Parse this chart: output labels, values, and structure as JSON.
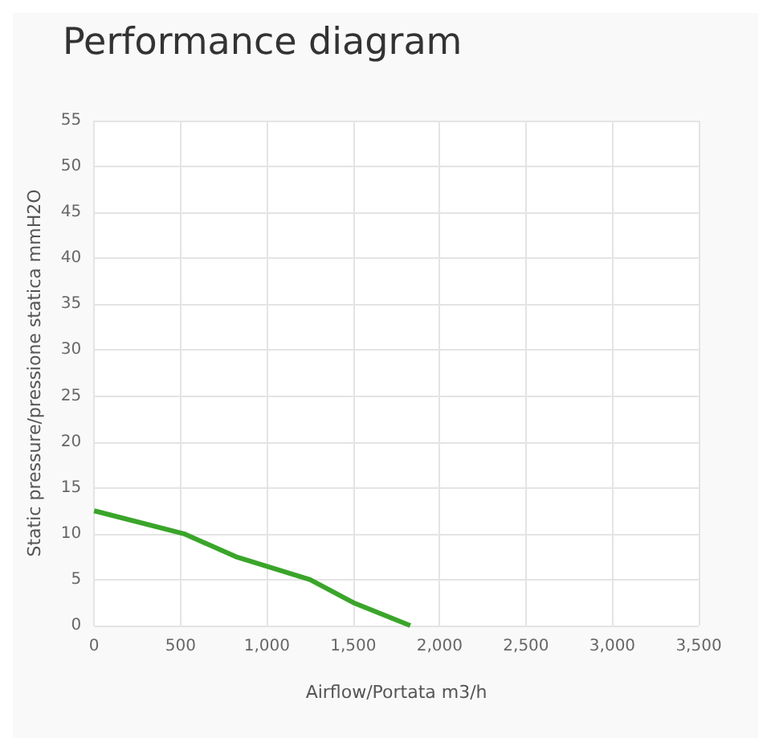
{
  "chart_data": {
    "type": "line",
    "title": "Performance diagram",
    "xlabel": "Airflow/Portata m3/h",
    "ylabel": "Static pressure/pressione statica mmH2O",
    "x": [
      0,
      520,
      820,
      1250,
      1500,
      1830
    ],
    "series": [
      {
        "color": "#3aa52a",
        "values": [
          12.5,
          10,
          7.5,
          5,
          2.5,
          0
        ]
      }
    ],
    "xlim": [
      0,
      3500
    ],
    "xticks": [
      {
        "value": 0,
        "label": "0"
      },
      {
        "value": 500,
        "label": "500"
      },
      {
        "value": 1000,
        "label": "1,000"
      },
      {
        "value": 1500,
        "label": "1,500"
      },
      {
        "value": 2000,
        "label": "2,000"
      },
      {
        "value": 2500,
        "label": "2,500"
      },
      {
        "value": 3000,
        "label": "3,000"
      },
      {
        "value": 3500,
        "label": "3,500"
      }
    ],
    "ylim": [
      0,
      55
    ],
    "yticks": [
      0,
      5,
      10,
      15,
      20,
      25,
      30,
      35,
      40,
      45,
      50,
      55
    ],
    "grid": true,
    "marker": "none",
    "line_style": "solid"
  }
}
